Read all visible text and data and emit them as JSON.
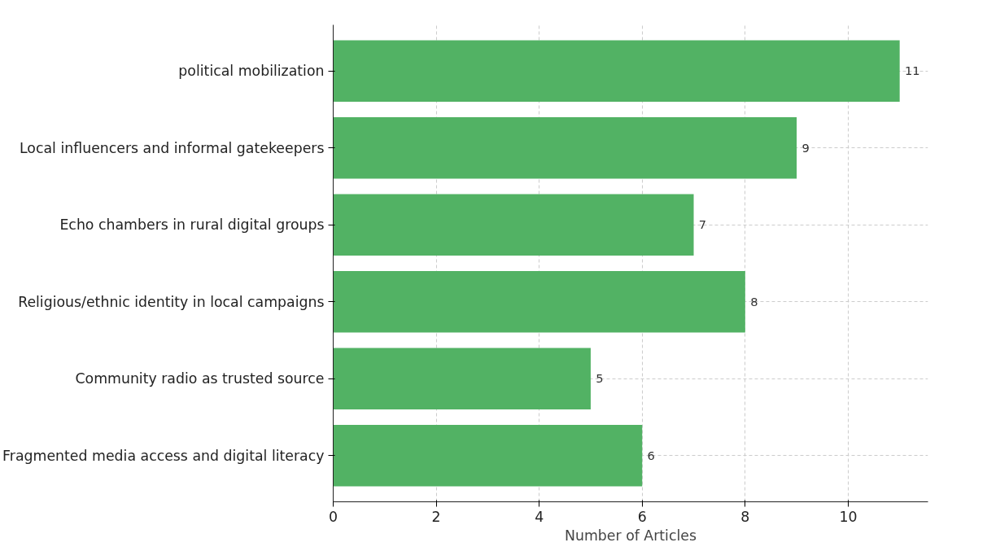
{
  "chart_data": {
    "type": "bar",
    "orientation": "horizontal",
    "xlabel": "Number of Articles",
    "categories": [
      "political mobilization",
      "Local influencers and informal gatekeepers",
      "Echo chambers in rural digital groups",
      "Religious/ethnic identity in local campaigns",
      "Community radio as trusted source",
      "Fragmented media access and digital literacy"
    ],
    "values": [
      11,
      9,
      7,
      8,
      5,
      6
    ],
    "color": "#52b264",
    "xlim": [
      0,
      11.55
    ],
    "xticks": [
      0,
      2,
      4,
      6,
      8,
      10
    ],
    "grid": true,
    "data_labels": true
  }
}
